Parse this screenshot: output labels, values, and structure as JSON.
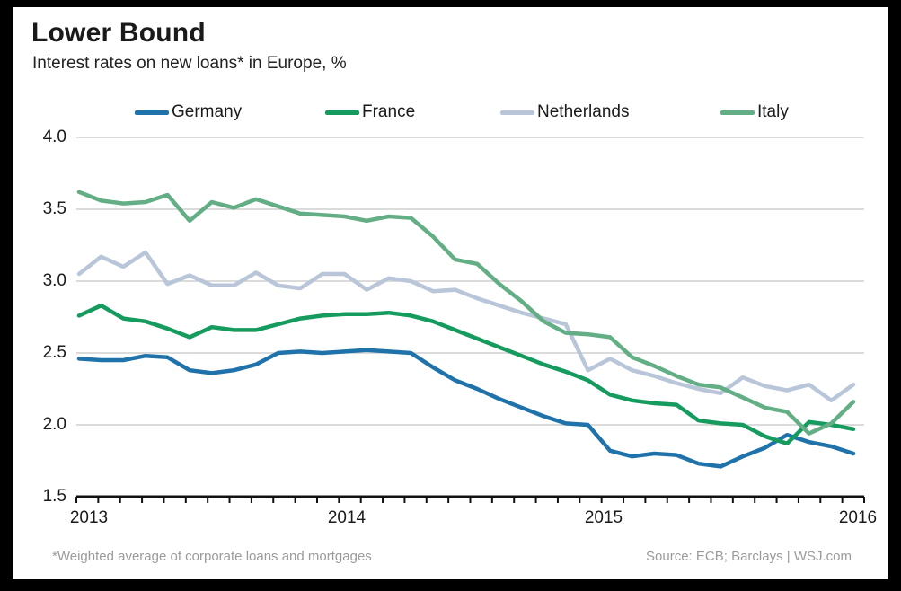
{
  "header": {
    "title": "Lower Bound",
    "subtitle": "Interest rates on new loans* in Europe, %"
  },
  "footer": {
    "footnote": "*Weighted average of corporate loans and mortgages",
    "source": "Source: ECB; Barclays | WSJ.com"
  },
  "colors": {
    "background": "#ffffff",
    "frame": "#000000",
    "grid": "#cfcfcf",
    "axis": "#111111",
    "text": "#1a1a1a",
    "muted": "#9b9b9b"
  },
  "chart_data": {
    "type": "line",
    "title": "Lower Bound",
    "subtitle": "Interest rates on new loans* in Europe, %",
    "x_description": "Monthly, January 2013 through December 2015",
    "x_tick_labels": [
      "2013",
      "2014",
      "2015",
      "2016"
    ],
    "y_tick_labels": [
      "4.0",
      "3.5",
      "3.0",
      "2.5",
      "2.0",
      "1.5"
    ],
    "y_gridline_values": [
      4.0,
      3.5,
      3.0,
      2.5,
      2.0
    ],
    "ylim": [
      1.5,
      4.0
    ],
    "grid": "horizontal",
    "legend_position": "top",
    "series": [
      {
        "name": "Germany",
        "color": "#1f72aa",
        "values": [
          2.46,
          2.45,
          2.45,
          2.48,
          2.47,
          2.38,
          2.36,
          2.38,
          2.42,
          2.5,
          2.51,
          2.5,
          2.51,
          2.52,
          2.51,
          2.5,
          2.4,
          2.31,
          2.25,
          2.18,
          2.12,
          2.06,
          2.01,
          2.0,
          1.82,
          1.78,
          1.8,
          1.79,
          1.73,
          1.71,
          1.78,
          1.84,
          1.93,
          1.88,
          1.85,
          1.8
        ]
      },
      {
        "name": "France",
        "color": "#169b5f",
        "values": [
          2.76,
          2.83,
          2.74,
          2.72,
          2.67,
          2.61,
          2.68,
          2.66,
          2.66,
          2.7,
          2.74,
          2.76,
          2.77,
          2.77,
          2.78,
          2.76,
          2.72,
          2.66,
          2.6,
          2.54,
          2.48,
          2.42,
          2.37,
          2.31,
          2.21,
          2.17,
          2.15,
          2.14,
          2.03,
          2.01,
          2.0,
          1.92,
          1.87,
          2.02,
          2.0,
          1.97
        ]
      },
      {
        "name": "Netherlands",
        "color": "#b9c5d8",
        "values": [
          3.05,
          3.17,
          3.1,
          3.2,
          2.98,
          3.04,
          2.97,
          2.97,
          3.06,
          2.97,
          2.95,
          3.05,
          3.05,
          2.94,
          3.02,
          3.0,
          2.93,
          2.94,
          2.88,
          2.83,
          2.78,
          2.74,
          2.7,
          2.38,
          2.46,
          2.38,
          2.34,
          2.29,
          2.25,
          2.22,
          2.33,
          2.27,
          2.24,
          2.28,
          2.17,
          2.28
        ]
      },
      {
        "name": "Italy",
        "color": "#63ae85",
        "values": [
          3.62,
          3.56,
          3.54,
          3.55,
          3.6,
          3.42,
          3.55,
          3.51,
          3.57,
          3.52,
          3.47,
          3.46,
          3.45,
          3.42,
          3.45,
          3.44,
          3.31,
          3.15,
          3.12,
          2.98,
          2.86,
          2.72,
          2.64,
          2.63,
          2.61,
          2.47,
          2.41,
          2.34,
          2.28,
          2.26,
          2.19,
          2.12,
          2.09,
          1.94,
          2.01,
          2.16
        ]
      }
    ]
  }
}
